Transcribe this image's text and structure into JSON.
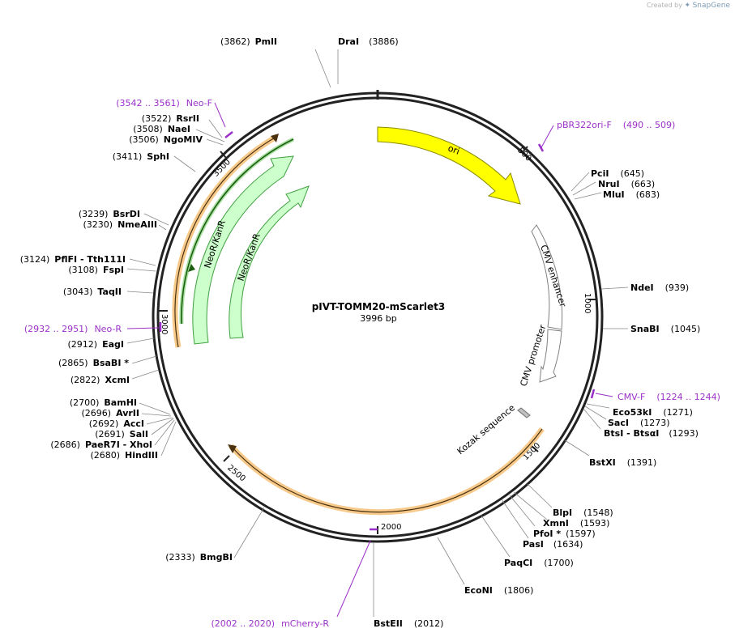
{
  "credit": {
    "prefix": "Created by",
    "brand": "SnapGene"
  },
  "plasmid": {
    "name": "pIVT-TOMM20-mScarlet3",
    "size_label": "3996 bp"
  },
  "ticks": [
    "500",
    "1000",
    "1500",
    "2000",
    "2500",
    "3000",
    "3500"
  ],
  "features": {
    "ori": "ori",
    "cmv_enhancer": "CMV enhancer",
    "cmv_promoter": "CMV promoter",
    "kozak": "Kozak sequence",
    "neo_outer": "NeoR/KanR",
    "neo_inner": "NeoR/KanR"
  },
  "sites": [
    {
      "pos": "(3862)",
      "name": "PmlI"
    },
    {
      "name": "DraI",
      "pos": "(3886)"
    },
    {
      "pos": "(3522)",
      "name": "RsrII"
    },
    {
      "pos": "(3508)",
      "name": "NaeI"
    },
    {
      "pos": "(3506)",
      "name": "NgoMIV"
    },
    {
      "pos": "(3411)",
      "name": "SphI"
    },
    {
      "pos": "(3239)",
      "name": "BsrDI"
    },
    {
      "pos": "(3230)",
      "name": "NmeAIII"
    },
    {
      "pos": "(3124)",
      "name": "PflFI  - Tth111I"
    },
    {
      "pos": "(3108)",
      "name": "FspI"
    },
    {
      "pos": "(3043)",
      "name": "TaqII"
    },
    {
      "pos": "(2912)",
      "name": "EagI"
    },
    {
      "pos": "(2865)",
      "name": "BsaBI *"
    },
    {
      "pos": "(2822)",
      "name": "XcmI"
    },
    {
      "pos": "(2700)",
      "name": "BamHI"
    },
    {
      "pos": "(2696)",
      "name": "AvrII"
    },
    {
      "pos": "(2692)",
      "name": "AccI"
    },
    {
      "pos": "(2691)",
      "name": "SalI"
    },
    {
      "pos": "(2686)",
      "name": "PaeR7I  - XhoI"
    },
    {
      "pos": "(2680)",
      "name": "HindIII"
    },
    {
      "pos": "(2333)",
      "name": "BmgBI"
    },
    {
      "name": "BstEII",
      "pos": "(2012)"
    },
    {
      "name": "EcoNI",
      "pos": "(1806)"
    },
    {
      "name": "PaqCI",
      "pos": "(1700)"
    },
    {
      "name": "PasI",
      "pos": "(1634)"
    },
    {
      "name": "PfoI *",
      "pos": "(1597)"
    },
    {
      "name": "XmnI",
      "pos": "(1593)"
    },
    {
      "name": "BlpI",
      "pos": "(1548)"
    },
    {
      "name": "BstXI",
      "pos": "(1391)"
    },
    {
      "name": "BtsI  - BtsαI",
      "pos": "(1293)"
    },
    {
      "name": "SacI",
      "pos": "(1273)"
    },
    {
      "name": "Eco53kI",
      "pos": "(1271)"
    },
    {
      "name": "SnaBI",
      "pos": "(1045)"
    },
    {
      "name": "NdeI",
      "pos": "(939)"
    },
    {
      "name": "MluI",
      "pos": "(683)"
    },
    {
      "name": "NruI",
      "pos": "(663)"
    },
    {
      "name": "PciI",
      "pos": "(645)"
    }
  ],
  "primers": [
    {
      "range": "(3542 .. 3561)",
      "name": "Neo-F"
    },
    {
      "name": "pBR322ori-F",
      "range": "(490 .. 509)"
    },
    {
      "range": "(2932 .. 2951)",
      "name": "Neo-R"
    },
    {
      "name": "CMV-F",
      "range": "(1224 .. 1244)"
    },
    {
      "range": "(2002 .. 2020)",
      "name": "mCherry-R"
    }
  ],
  "colors": {
    "backbone": "#222222",
    "primer": "#9b30c8",
    "ori": "#ffff00",
    "neo_fill": "#ccffcc",
    "neo_stroke": "#40a040",
    "orf_highlight": "#f7c98a",
    "orf_arrow": "#1d5e12",
    "promoter_fill": "#ffffff"
  }
}
